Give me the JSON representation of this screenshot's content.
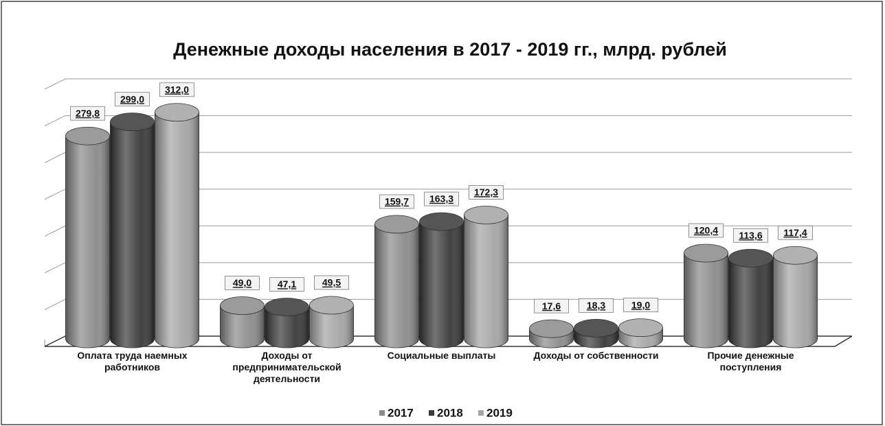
{
  "chart_data": {
    "type": "bar3d",
    "title": "Денежные доходы населения в 2017 - 2019 гг., млрд. рублей",
    "categories": [
      "Оплата труда наемных работников",
      "Доходы от предпринимательской деятельности",
      "Социальные выплаты",
      "Доходы от собственности",
      "Прочие денежные поступления"
    ],
    "series": [
      {
        "name": "2017",
        "color": "#8a8a8a",
        "values": [
          279.8,
          49.0,
          159.7,
          17.6,
          120.4
        ],
        "value_labels": [
          "279,8",
          "49,0",
          "159,7",
          "17,6",
          "120,4"
        ]
      },
      {
        "name": "2018",
        "color": "#383838",
        "values": [
          299.0,
          47.1,
          163.3,
          18.3,
          113.6
        ],
        "value_labels": [
          "299,0",
          "47,1",
          "163,3",
          "18,3",
          "113,6"
        ]
      },
      {
        "name": "2019",
        "color": "#a4a4a4",
        "values": [
          312.0,
          49.5,
          172.3,
          19.0,
          117.4
        ],
        "value_labels": [
          "312,0",
          "49,5",
          "172,3",
          "19,0",
          "117,4"
        ]
      }
    ],
    "ylim": [
      0,
      350
    ],
    "yticks": [
      0,
      50,
      100,
      150,
      200,
      250,
      300,
      350
    ],
    "grid": true,
    "legend": "bottom"
  }
}
